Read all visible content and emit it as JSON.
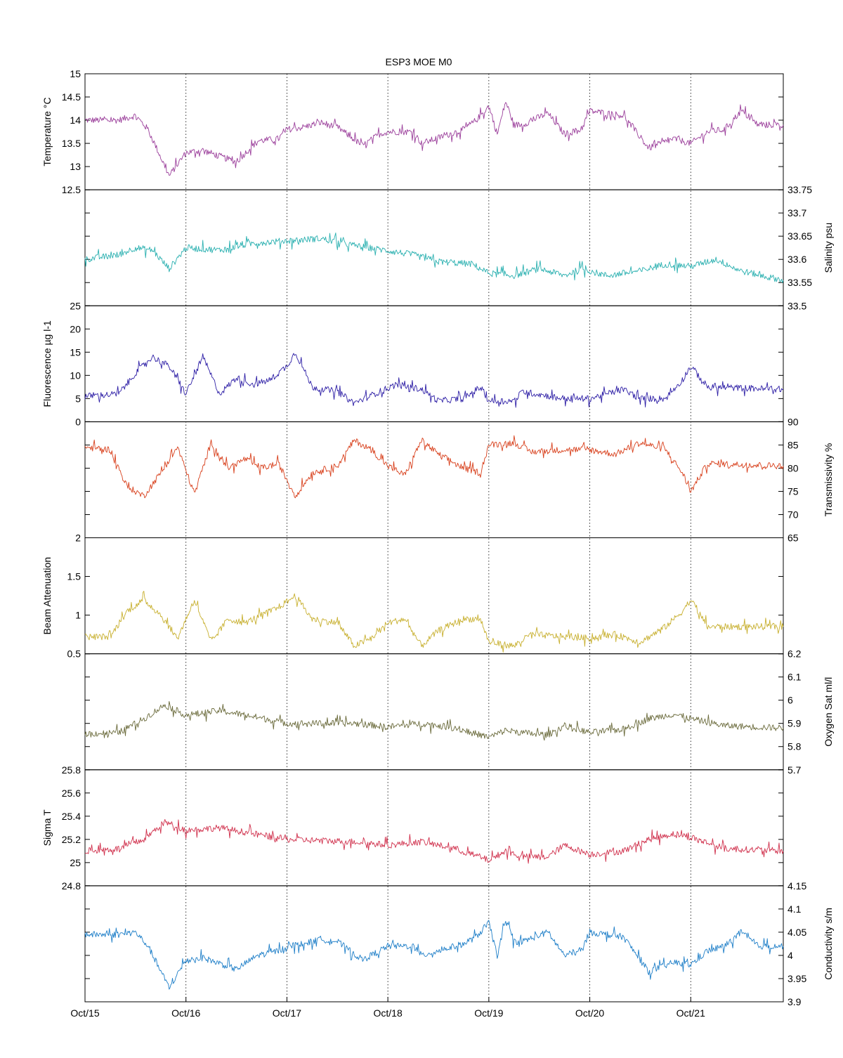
{
  "chart_data": {
    "type": "line",
    "title": "ESP3 MOE   M0",
    "x": {
      "range": [
        "2011-10-15",
        "2011-10-21T22:00"
      ],
      "tick_labels": [
        "Oct/15",
        "Oct/16",
        "Oct/17",
        "Oct/18",
        "Oct/19",
        "Oct/20",
        "Oct/21"
      ],
      "tick_dates": [
        "2011-10-15",
        "2011-10-16",
        "2011-10-17",
        "2011-10-18",
        "2011-10-19",
        "2011-10-20",
        "2011-10-21"
      ],
      "gridlines": "dotted-vertical"
    },
    "panels": [
      {
        "ylabel": "Temperature °C",
        "axis_side": "left",
        "color": "#9b3f9b",
        "ylim": [
          12.5,
          15
        ],
        "ticks": [
          "12.5",
          "13",
          "13.5",
          "14",
          "14.5",
          "15"
        ],
        "series": {
          "x": [
            "2011-10-15T00:00",
            "2011-10-15T08:00",
            "2011-10-15T12:00",
            "2011-10-15T15:00",
            "2011-10-15T20:00",
            "2011-10-16T00:00",
            "2011-10-16T04:00",
            "2011-10-16T12:00",
            "2011-10-16T17:00",
            "2011-10-16T22:00",
            "2011-10-17T00:00",
            "2011-10-17T04:00",
            "2011-10-17T08:00",
            "2011-10-17T12:00",
            "2011-10-17T18:00",
            "2011-10-17T22:00",
            "2011-10-18T00:00",
            "2011-10-18T06:00",
            "2011-10-18T08:00",
            "2011-10-18T18:00",
            "2011-10-18T21:00",
            "2011-10-19T00:00",
            "2011-10-19T02:00",
            "2011-10-19T04:00",
            "2011-10-19T06:00",
            "2011-10-19T08:00",
            "2011-10-19T14:00",
            "2011-10-19T18:00",
            "2011-10-19T22:00",
            "2011-10-20T00:00",
            "2011-10-20T08:00",
            "2011-10-20T14:00",
            "2011-10-20T20:00",
            "2011-10-21T00:00",
            "2011-10-21T04:00",
            "2011-10-21T08:00",
            "2011-10-21T12:00",
            "2011-10-21T16:00",
            "2011-10-21T22:00"
          ],
          "values": [
            14.0,
            14.0,
            14.1,
            13.8,
            12.8,
            13.3,
            13.35,
            13.1,
            13.55,
            13.6,
            13.8,
            13.85,
            13.95,
            13.85,
            13.45,
            13.7,
            13.75,
            13.75,
            13.5,
            13.8,
            14.0,
            14.3,
            13.7,
            14.4,
            13.9,
            13.9,
            14.15,
            13.7,
            13.8,
            14.2,
            14.1,
            13.4,
            13.6,
            13.5,
            13.75,
            13.8,
            14.2,
            13.9,
            13.9
          ]
        }
      },
      {
        "ylabel": "Salinity psu",
        "axis_side": "right",
        "color": "#2ab0b0",
        "ylim": [
          33.5,
          33.75
        ],
        "ticks": [
          "33.5",
          "33.55",
          "33.6",
          "33.65",
          "33.7",
          "33.75"
        ],
        "series": {
          "x": [
            "2011-10-15T00:00",
            "2011-10-15T08:00",
            "2011-10-15T12:00",
            "2011-10-15T16:00",
            "2011-10-15T20:00",
            "2011-10-16T00:00",
            "2011-10-16T08:00",
            "2011-10-16T16:00",
            "2011-10-17T00:00",
            "2011-10-17T08:00",
            "2011-10-17T16:00",
            "2011-10-17T23:00",
            "2011-10-18T06:00",
            "2011-10-18T12:00",
            "2011-10-18T20:00",
            "2011-10-19T00:00",
            "2011-10-19T06:00",
            "2011-10-19T12:00",
            "2011-10-19T18:00",
            "2011-10-19T22:00",
            "2011-10-20T04:00",
            "2011-10-20T12:00",
            "2011-10-20T18:00",
            "2011-10-21T00:00",
            "2011-10-21T06:00",
            "2011-10-21T12:00",
            "2011-10-21T22:00"
          ],
          "values": [
            33.6,
            33.61,
            33.625,
            33.62,
            33.58,
            33.625,
            33.62,
            33.635,
            33.64,
            33.645,
            33.63,
            33.62,
            33.61,
            33.595,
            33.59,
            33.57,
            33.565,
            33.58,
            33.565,
            33.58,
            33.565,
            33.575,
            33.59,
            33.585,
            33.6,
            33.575,
            33.555
          ]
        }
      },
      {
        "ylabel": "Fluorescence µg l-1",
        "axis_side": "left",
        "color": "#2e1fa6",
        "ylim": [
          0,
          25
        ],
        "ticks": [
          "0",
          "5",
          "10",
          "15",
          "20",
          "25"
        ],
        "series": {
          "x": [
            "2011-10-15T00:00",
            "2011-10-15T08:00",
            "2011-10-15T12:00",
            "2011-10-15T16:00",
            "2011-10-15T20:00",
            "2011-10-16T00:00",
            "2011-10-16T04:00",
            "2011-10-16T08:00",
            "2011-10-16T12:00",
            "2011-10-16T16:00",
            "2011-10-16T20:00",
            "2011-10-17T00:00",
            "2011-10-17T02:00",
            "2011-10-17T06:00",
            "2011-10-17T12:00",
            "2011-10-17T16:00",
            "2011-10-17T22:00",
            "2011-10-18T02:00",
            "2011-10-18T08:00",
            "2011-10-18T12:00",
            "2011-10-18T18:00",
            "2011-10-18T22:00",
            "2011-10-19T00:00",
            "2011-10-19T06:00",
            "2011-10-19T08:00",
            "2011-10-19T18:00",
            "2011-10-20T00:00",
            "2011-10-20T08:00",
            "2011-10-20T12:00",
            "2011-10-20T18:00",
            "2011-10-20T22:00",
            "2011-10-21T00:00",
            "2011-10-21T04:00",
            "2011-10-21T22:00"
          ],
          "values": [
            5.5,
            6.0,
            10.5,
            14.0,
            12.0,
            6.0,
            14.0,
            6.0,
            9.5,
            8.0,
            9.0,
            12.0,
            15.0,
            7.5,
            6.5,
            4.0,
            6.5,
            8.0,
            7.0,
            4.5,
            5.0,
            7.5,
            4.5,
            4.5,
            6.5,
            5.0,
            5.0,
            7.0,
            5.0,
            5.0,
            9.0,
            12.0,
            7.5,
            7.0
          ]
        }
      },
      {
        "ylabel": "Transmissivity %",
        "axis_side": "right",
        "color": "#d8401c",
        "ylim": [
          65,
          90
        ],
        "ticks": [
          "65",
          "70",
          "75",
          "80",
          "85",
          "90"
        ],
        "series": {
          "x": [
            "2011-10-15T00:00",
            "2011-10-15T06:00",
            "2011-10-15T10:00",
            "2011-10-15T14:00",
            "2011-10-15T18:00",
            "2011-10-15T22:00",
            "2011-10-16T02:00",
            "2011-10-16T06:00",
            "2011-10-16T10:00",
            "2011-10-16T14:00",
            "2011-10-16T18:00",
            "2011-10-16T22:00",
            "2011-10-17T02:00",
            "2011-10-17T06:00",
            "2011-10-17T12:00",
            "2011-10-17T16:00",
            "2011-10-17T20:00",
            "2011-10-18T00:00",
            "2011-10-18T04:00",
            "2011-10-18T08:00",
            "2011-10-18T12:00",
            "2011-10-18T18:00",
            "2011-10-18T22:00",
            "2011-10-19T00:00",
            "2011-10-19T06:00",
            "2011-10-19T10:00",
            "2011-10-19T18:00",
            "2011-10-20T00:00",
            "2011-10-20T06:00",
            "2011-10-20T12:00",
            "2011-10-20T18:00",
            "2011-10-20T22:00",
            "2011-10-21T00:00",
            "2011-10-21T04:00",
            "2011-10-21T22:00"
          ],
          "values": [
            84.5,
            84.0,
            76.0,
            74.0,
            79.0,
            84.5,
            74.5,
            85.5,
            80.0,
            82.0,
            80.0,
            81.0,
            74.0,
            79.0,
            80.5,
            86.0,
            84.0,
            80.5,
            78.5,
            86.0,
            83.0,
            80.0,
            79.0,
            85.0,
            85.5,
            83.5,
            84.0,
            84.0,
            83.0,
            85.5,
            84.0,
            79.0,
            75.0,
            81.0,
            80.5
          ]
        }
      },
      {
        "ylabel": "Beam Attenuation",
        "axis_side": "left",
        "color": "#c8b030",
        "ylim": [
          0.5,
          2
        ],
        "ticks": [
          "0.5",
          "1",
          "1.5",
          "2"
        ],
        "series": {
          "x": [
            "2011-10-15T00:00",
            "2011-10-15T06:00",
            "2011-10-15T10:00",
            "2011-10-15T14:00",
            "2011-10-15T18:00",
            "2011-10-15T22:00",
            "2011-10-16T02:00",
            "2011-10-16T06:00",
            "2011-10-16T10:00",
            "2011-10-16T14:00",
            "2011-10-16T18:00",
            "2011-10-16T22:00",
            "2011-10-17T02:00",
            "2011-10-17T06:00",
            "2011-10-17T12:00",
            "2011-10-17T16:00",
            "2011-10-17T20:00",
            "2011-10-18T00:00",
            "2011-10-18T04:00",
            "2011-10-18T08:00",
            "2011-10-18T12:00",
            "2011-10-18T18:00",
            "2011-10-18T22:00",
            "2011-10-19T00:00",
            "2011-10-19T06:00",
            "2011-10-19T10:00",
            "2011-10-19T18:00",
            "2011-10-20T00:00",
            "2011-10-20T06:00",
            "2011-10-20T12:00",
            "2011-10-20T18:00",
            "2011-10-20T22:00",
            "2011-10-21T00:00",
            "2011-10-21T04:00",
            "2011-10-21T22:00"
          ],
          "values": [
            0.72,
            0.72,
            1.05,
            1.2,
            1.0,
            0.7,
            1.2,
            0.65,
            0.95,
            0.9,
            1.0,
            1.1,
            1.25,
            0.95,
            0.9,
            0.6,
            0.7,
            0.9,
            0.95,
            0.6,
            0.8,
            0.95,
            0.95,
            0.65,
            0.6,
            0.75,
            0.72,
            0.7,
            0.75,
            0.65,
            0.85,
            1.05,
            1.2,
            0.85,
            0.85
          ]
        }
      },
      {
        "ylabel": "Oxygen Sat ml/l",
        "axis_side": "right",
        "color": "#6b6b3c",
        "ylim": [
          5.7,
          6.2
        ],
        "ticks": [
          "5.7",
          "5.8",
          "5.9",
          "6",
          "6.1",
          "6.2"
        ],
        "series": {
          "x": [
            "2011-10-15T00:00",
            "2011-10-15T08:00",
            "2011-10-15T14:00",
            "2011-10-15T19:00",
            "2011-10-16T00:00",
            "2011-10-16T08:00",
            "2011-10-16T16:00",
            "2011-10-17T00:00",
            "2011-10-17T08:00",
            "2011-10-17T16:00",
            "2011-10-18T00:00",
            "2011-10-18T08:00",
            "2011-10-18T16:00",
            "2011-10-19T00:00",
            "2011-10-19T04:00",
            "2011-10-19T08:00",
            "2011-10-19T14:00",
            "2011-10-19T18:00",
            "2011-10-20T00:00",
            "2011-10-20T08:00",
            "2011-10-20T14:00",
            "2011-10-20T20:00",
            "2011-10-21T00:00",
            "2011-10-21T08:00",
            "2011-10-21T22:00"
          ],
          "values": [
            5.855,
            5.86,
            5.92,
            5.98,
            5.935,
            5.955,
            5.93,
            5.9,
            5.9,
            5.9,
            5.885,
            5.9,
            5.88,
            5.84,
            5.87,
            5.86,
            5.85,
            5.89,
            5.86,
            5.875,
            5.92,
            5.94,
            5.92,
            5.89,
            5.88
          ]
        }
      },
      {
        "ylabel": "Sigma T",
        "axis_side": "left",
        "color": "#d0304c",
        "ylim": [
          24.8,
          25.8
        ],
        "ticks": [
          "24.8",
          "25",
          "25.2",
          "25.4",
          "25.6",
          "25.8"
        ],
        "series": {
          "x": [
            "2011-10-15T00:00",
            "2011-10-15T08:00",
            "2011-10-15T14:00",
            "2011-10-15T19:00",
            "2011-10-16T00:00",
            "2011-10-16T08:00",
            "2011-10-16T16:00",
            "2011-10-17T00:00",
            "2011-10-17T08:00",
            "2011-10-17T16:00",
            "2011-10-18T00:00",
            "2011-10-18T08:00",
            "2011-10-18T16:00",
            "2011-10-19T00:00",
            "2011-10-19T04:00",
            "2011-10-19T08:00",
            "2011-10-19T14:00",
            "2011-10-19T18:00",
            "2011-10-20T00:00",
            "2011-10-20T08:00",
            "2011-10-20T14:00",
            "2011-10-20T20:00",
            "2011-10-21T00:00",
            "2011-10-21T08:00",
            "2011-10-21T22:00"
          ],
          "values": [
            25.1,
            25.12,
            25.2,
            25.35,
            25.28,
            25.3,
            25.25,
            25.2,
            25.19,
            25.18,
            25.15,
            25.18,
            25.12,
            25.02,
            25.1,
            25.05,
            25.05,
            25.15,
            25.07,
            25.1,
            25.2,
            25.25,
            25.22,
            25.12,
            25.1
          ]
        }
      },
      {
        "ylabel": "Conductivity s/m",
        "axis_side": "right",
        "color": "#1f7fc8",
        "ylim": [
          3.9,
          4.15
        ],
        "ticks": [
          "3.9",
          "3.95",
          "4",
          "4.05",
          "4.1",
          "4.15"
        ],
        "series": {
          "x": [
            "2011-10-15T00:00",
            "2011-10-15T08:00",
            "2011-10-15T12:00",
            "2011-10-15T15:00",
            "2011-10-15T20:00",
            "2011-10-16T00:00",
            "2011-10-16T04:00",
            "2011-10-16T12:00",
            "2011-10-16T17:00",
            "2011-10-16T22:00",
            "2011-10-17T00:00",
            "2011-10-17T04:00",
            "2011-10-17T08:00",
            "2011-10-17T12:00",
            "2011-10-17T18:00",
            "2011-10-17T22:00",
            "2011-10-18T00:00",
            "2011-10-18T06:00",
            "2011-10-18T08:00",
            "2011-10-18T18:00",
            "2011-10-18T21:00",
            "2011-10-19T00:00",
            "2011-10-19T02:00",
            "2011-10-19T04:00",
            "2011-10-19T06:00",
            "2011-10-19T08:00",
            "2011-10-19T14:00",
            "2011-10-19T18:00",
            "2011-10-19T22:00",
            "2011-10-20T00:00",
            "2011-10-20T08:00",
            "2011-10-20T14:00",
            "2011-10-20T20:00",
            "2011-10-21T00:00",
            "2011-10-21T04:00",
            "2011-10-21T08:00",
            "2011-10-21T12:00",
            "2011-10-21T16:00",
            "2011-10-21T22:00"
          ],
          "values": [
            4.045,
            4.045,
            4.05,
            4.02,
            3.93,
            3.99,
            3.995,
            3.97,
            4.0,
            4.01,
            4.02,
            4.025,
            4.035,
            4.03,
            3.99,
            4.01,
            4.02,
            4.02,
            4.0,
            4.025,
            4.04,
            4.07,
            4.0,
            4.075,
            4.03,
            4.03,
            4.05,
            4.0,
            4.01,
            4.05,
            4.04,
            3.965,
            3.985,
            3.98,
            4.01,
            4.02,
            4.05,
            4.02,
            4.02
          ]
        }
      }
    ]
  }
}
